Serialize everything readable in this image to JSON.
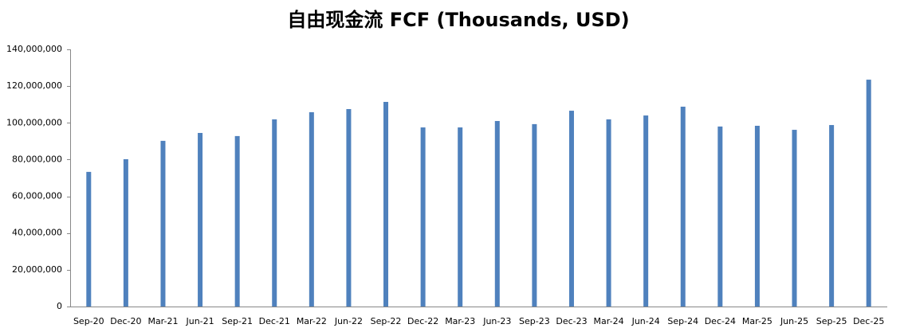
{
  "chart_data": {
    "type": "bar",
    "title": "自由现金流 FCF (Thousands, USD)",
    "categories": [
      "Sep-20",
      "Dec-20",
      "Mar-21",
      "Jun-21",
      "Sep-21",
      "Dec-21",
      "Mar-22",
      "Jun-22",
      "Sep-22",
      "Dec-22",
      "Mar-23",
      "Jun-23",
      "Sep-23",
      "Dec-23",
      "Mar-24",
      "Jun-24",
      "Sep-24",
      "Dec-24",
      "Mar-25",
      "Jun-25",
      "Sep-25",
      "Dec-25"
    ],
    "values": [
      73300000,
      80200000,
      90200000,
      94500000,
      92800000,
      101900000,
      105800000,
      107500000,
      111400000,
      97500000,
      97500000,
      101000000,
      99300000,
      106600000,
      101900000,
      104000000,
      108800000,
      98000000,
      98400000,
      96200000,
      98800000,
      123500000
    ],
    "color": "#4f81bd",
    "ylim": [
      0,
      140000000
    ],
    "yticks": [
      0,
      {
        "value": 20000000,
        "label": "20,000,000"
      },
      {
        "value": 40000000,
        "label": "40,000,000"
      },
      {
        "value": 60000000,
        "label": "60,000,000"
      },
      {
        "value": 80000000,
        "label": "80,000,000"
      },
      {
        "value": 100000000,
        "label": "100,000,000"
      },
      {
        "value": 120000000,
        "label": "120,000,000"
      },
      {
        "value": 140000000,
        "label": "140,000,000"
      }
    ],
    "grid": false
  }
}
